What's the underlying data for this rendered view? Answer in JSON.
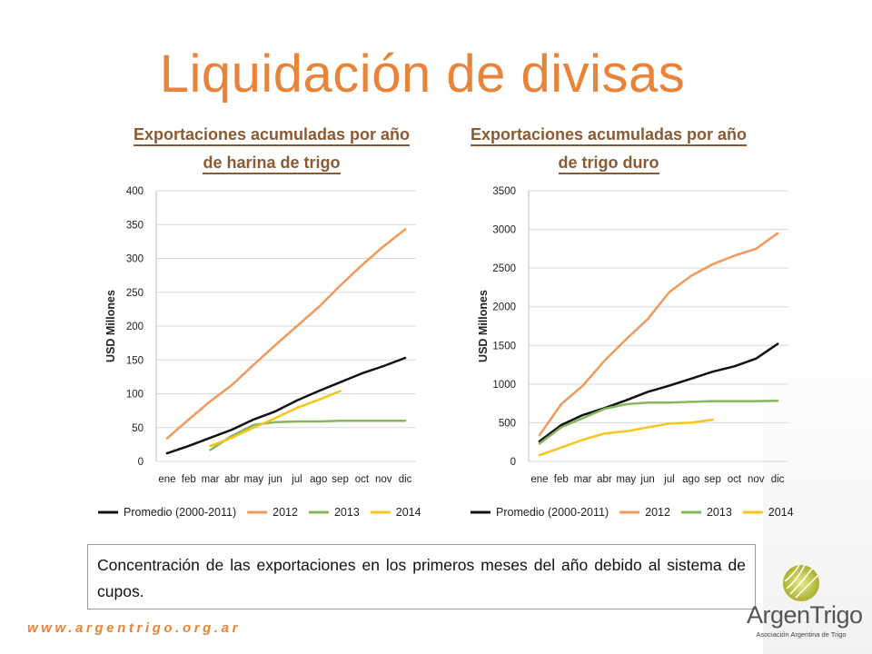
{
  "slide": {
    "title": "Liquidación de divisas",
    "note": "Concentración de las exportaciones en los primeros meses del año debido al sistema de cupos.",
    "url": "www.argentrigo.org.ar"
  },
  "logo": {
    "name": "ArgenTrigo",
    "subtitle": "Asociación Argentina de Trigo"
  },
  "colors": {
    "title": "#e8833a",
    "heading": "#8a5a33",
    "promedio": "#111111",
    "y2012": "#f0995a",
    "y2013": "#86b75b",
    "y2014": "#f5c518"
  },
  "chart_data": [
    {
      "type": "line",
      "title_line1": "Exportaciones acumuladas por año",
      "title_line2": "de harina de trigo",
      "xlabel": "",
      "ylabel": "USD Millones",
      "ylim": [
        0,
        400
      ],
      "yticks": [
        0,
        50,
        100,
        150,
        200,
        250,
        300,
        350,
        400
      ],
      "categories": [
        "ene",
        "feb",
        "mar",
        "abr",
        "may",
        "jun",
        "jul",
        "ago",
        "sep",
        "oct",
        "nov",
        "dic"
      ],
      "grid": true,
      "legend_position": "bottom",
      "series": [
        {
          "name": "Promedio (2000-2011)",
          "color": "#111111",
          "values": [
            12,
            23,
            35,
            47,
            62,
            74,
            90,
            104,
            117,
            130,
            141,
            153
          ]
        },
        {
          "name": "2012",
          "color": "#f0995a",
          "values": [
            34,
            62,
            89,
            113,
            143,
            172,
            200,
            228,
            260,
            290,
            318,
            343
          ]
        },
        {
          "name": "2013",
          "color": "#86b75b",
          "values": [
            null,
            null,
            17,
            38,
            54,
            58,
            59,
            59,
            60,
            60,
            60,
            60
          ]
        },
        {
          "name": "2014",
          "color": "#f5c518",
          "values": [
            null,
            null,
            23,
            35,
            50,
            64,
            79,
            91,
            104,
            null,
            null,
            null
          ]
        }
      ]
    },
    {
      "type": "line",
      "title_line1": "Exportaciones acumuladas por año",
      "title_line2": "de trigo duro",
      "xlabel": "",
      "ylabel": "USD Millones",
      "ylim": [
        0,
        3500
      ],
      "yticks": [
        0,
        500,
        1000,
        1500,
        2000,
        2500,
        3000,
        3500
      ],
      "categories": [
        "ene",
        "feb",
        "mar",
        "abr",
        "may",
        "jun",
        "jul",
        "ago",
        "sep",
        "oct",
        "nov",
        "dic"
      ],
      "grid": true,
      "legend_position": "bottom",
      "series": [
        {
          "name": "Promedio (2000-2011)",
          "color": "#111111",
          "values": [
            260,
            470,
            600,
            690,
            790,
            900,
            980,
            1070,
            1160,
            1230,
            1330,
            1520
          ]
        },
        {
          "name": "2012",
          "color": "#f0995a",
          "values": [
            340,
            740,
            980,
            1300,
            1580,
            1840,
            2190,
            2400,
            2550,
            2660,
            2750,
            2950
          ]
        },
        {
          "name": "2013",
          "color": "#86b75b",
          "values": [
            230,
            440,
            560,
            680,
            740,
            760,
            760,
            770,
            780,
            780,
            780,
            785
          ]
        },
        {
          "name": "2014",
          "color": "#f5c518",
          "values": [
            80,
            180,
            280,
            360,
            390,
            440,
            490,
            500,
            540,
            null,
            null,
            null
          ]
        }
      ]
    }
  ]
}
